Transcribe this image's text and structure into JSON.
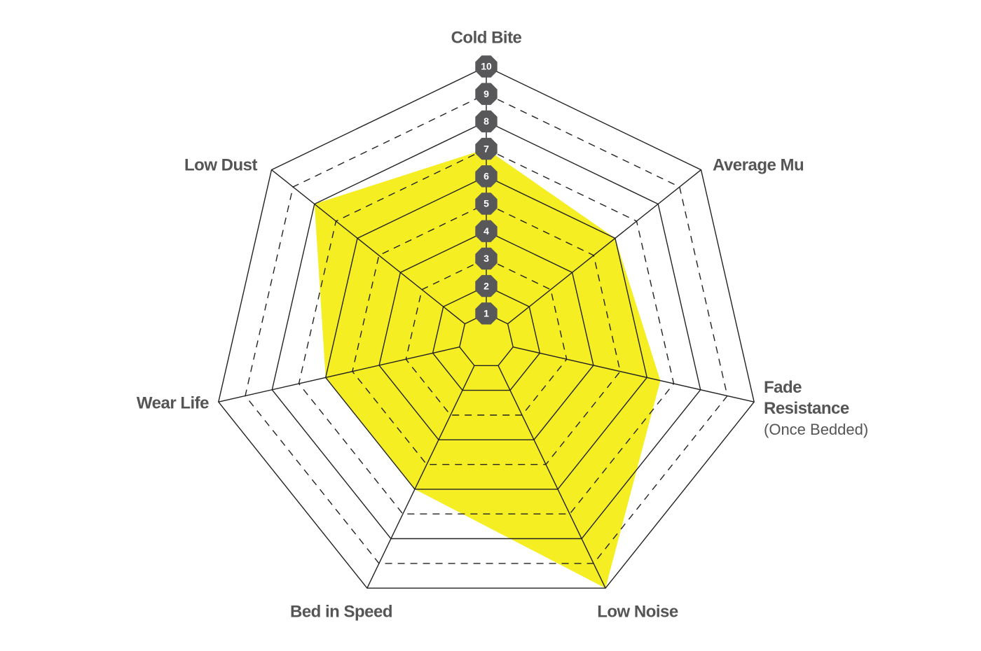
{
  "chart_data": {
    "type": "radar",
    "categories": [
      "Cold Bite",
      "Average Mu",
      "Fade Resistance",
      "Low Noise",
      "Bed in Speed",
      "Wear Life",
      "Low Dust"
    ],
    "annotations": [
      "(Once Bedded)"
    ],
    "values": [
      7,
      6,
      6.5,
      10,
      6,
      6,
      8
    ],
    "color": "#f4ee22",
    "ylim": [
      0,
      10
    ],
    "yticks": [
      1,
      2,
      3,
      4,
      5,
      6,
      7,
      8,
      9,
      10
    ],
    "grid": true
  }
}
